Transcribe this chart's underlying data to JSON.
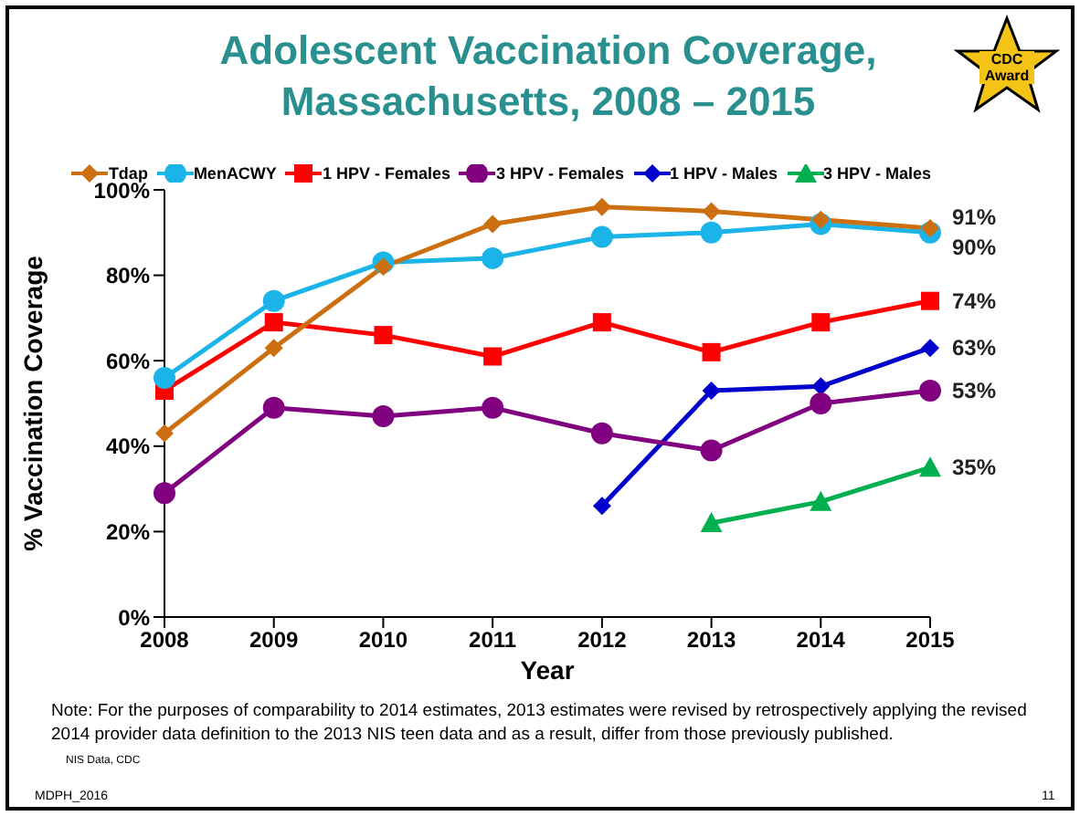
{
  "chart_data": {
    "type": "line",
    "title": "Adolescent Vaccination Coverage, Massachusetts,  2008 – 2015",
    "ylabel": "% Vaccination Coverage",
    "xlabel": "Year",
    "categories": [
      "2008",
      "2009",
      "2010",
      "2011",
      "2012",
      "2013",
      "2014",
      "2015"
    ],
    "series": [
      {
        "name": "Tdap",
        "color": "#cc6f10",
        "marker": "diamond",
        "values": [
          43,
          63,
          82,
          92,
          96,
          95,
          93,
          91
        ],
        "value_labels": [
          null,
          null,
          null,
          null,
          null,
          null,
          null,
          "91%"
        ]
      },
      {
        "name": "MenACWY",
        "color": "#1ab4e8",
        "marker": "circle",
        "values": [
          56,
          74,
          83,
          84,
          89,
          90,
          92,
          90
        ],
        "value_labels": [
          null,
          null,
          null,
          null,
          null,
          null,
          null,
          "90%"
        ]
      },
      {
        "name": "1 HPV - Females",
        "color": "#ff0000",
        "marker": "square",
        "values": [
          53,
          69,
          66,
          61,
          69,
          62,
          69,
          74
        ],
        "value_labels": [
          null,
          null,
          null,
          null,
          null,
          null,
          null,
          "74%"
        ]
      },
      {
        "name": "3 HPV - Females",
        "color": "#800080",
        "marker": "circle",
        "values": [
          29,
          49,
          47,
          49,
          43,
          39,
          50,
          53
        ],
        "value_labels": [
          null,
          null,
          null,
          null,
          null,
          null,
          null,
          "53%"
        ]
      },
      {
        "name": "1 HPV - Males",
        "color": "#0000cc",
        "marker": "diamond",
        "values": [
          null,
          null,
          null,
          null,
          26,
          53,
          54,
          63
        ],
        "value_labels": [
          null,
          null,
          null,
          null,
          null,
          null,
          null,
          "63%"
        ]
      },
      {
        "name": "3 HPV - Males",
        "color": "#00b050",
        "marker": "triangle",
        "values": [
          null,
          null,
          null,
          null,
          null,
          22,
          27,
          35
        ],
        "value_labels": [
          null,
          null,
          null,
          null,
          null,
          null,
          null,
          "35%"
        ]
      }
    ],
    "ylim": [
      0,
      100
    ],
    "yticks": [
      {
        "value": 0,
        "label": "0%"
      },
      {
        "value": 20,
        "label": "20%"
      },
      {
        "value": 40,
        "label": "40%"
      },
      {
        "value": 60,
        "label": "60%"
      },
      {
        "value": 80,
        "label": "80%"
      },
      {
        "value": 100,
        "label": "100%"
      }
    ],
    "grid": false,
    "legend": "top",
    "line_style": "solid",
    "annotations": [
      "CDC Award",
      "Note: For the purposes of comparability to 2014 estimates,  2013 estimates were revised by retrospectively applying the revised 2014 provider data definition to the 2013 NIS teen data and as a result, differ from those previously published.",
      "NIS Data, CDC",
      "MDPH_2016",
      "11"
    ]
  }
}
